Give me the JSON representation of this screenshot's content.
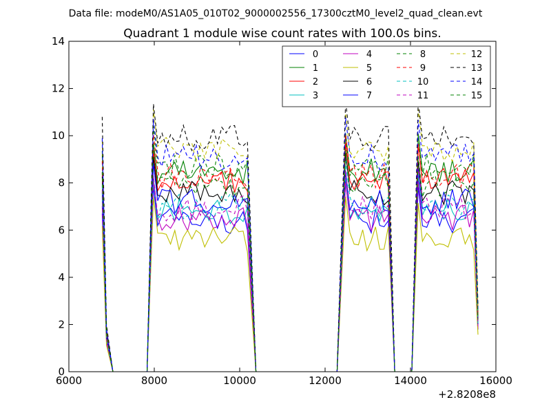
{
  "chart_data": {
    "type": "line",
    "suptitle": "Data file: modeM0/AS1A05_010T02_9000002556_17300cztM0_level2_quad_clean.evt",
    "title": "Quadrant 1 module wise count rates with 100.0s bins.",
    "xlabel": "",
    "ylabel": "",
    "x_offset_label": "+2.8208e8",
    "xlim": [
      6000,
      16000
    ],
    "ylim": [
      0,
      14
    ],
    "x_ticks": [
      "6000",
      "8000",
      "10000",
      "12000",
      "14000",
      "16000"
    ],
    "y_ticks": [
      "0",
      "2",
      "4",
      "6",
      "8",
      "10",
      "12",
      "14"
    ],
    "grid": false,
    "legend_position": "top-right",
    "legend_columns": 4,
    "series": [
      {
        "name": "0",
        "color": "#0000ff",
        "dash": "solid",
        "level": 6.4
      },
      {
        "name": "1",
        "color": "#008000",
        "dash": "solid",
        "level": 8.5
      },
      {
        "name": "2",
        "color": "#ff0000",
        "dash": "solid",
        "level": 8.1
      },
      {
        "name": "3",
        "color": "#00bfbf",
        "dash": "solid",
        "level": 6.8
      },
      {
        "name": "4",
        "color": "#bf00bf",
        "dash": "solid",
        "level": 6.5
      },
      {
        "name": "5",
        "color": "#bfbf00",
        "dash": "solid",
        "level": 5.6
      },
      {
        "name": "6",
        "color": "#000000",
        "dash": "solid",
        "level": 7.6
      },
      {
        "name": "7",
        "color": "#0000ff",
        "dash": "solid",
        "level": 7.2
      },
      {
        "name": "8",
        "color": "#008000",
        "dash": "dashed",
        "level": 8.7
      },
      {
        "name": "9",
        "color": "#ff0000",
        "dash": "dashed",
        "level": 8.3
      },
      {
        "name": "10",
        "color": "#00bfbf",
        "dash": "dashed",
        "level": 7.0
      },
      {
        "name": "11",
        "color": "#bf00bf",
        "dash": "dashed",
        "level": 6.9
      },
      {
        "name": "12",
        "color": "#bfbf00",
        "dash": "dashed",
        "level": 9.4
      },
      {
        "name": "13",
        "color": "#000000",
        "dash": "dashed",
        "level": 9.9
      },
      {
        "name": "14",
        "color": "#0000ff",
        "dash": "dashed",
        "level": 9.1
      },
      {
        "name": "15",
        "color": "#008000",
        "dash": "dashed",
        "level": 7.9
      }
    ],
    "time_segments": [
      {
        "start": 6780,
        "end": 6880,
        "kind": "lead"
      },
      {
        "start": 7030,
        "end": 7830,
        "kind": "gap"
      },
      {
        "start": 7980,
        "end": 10180,
        "kind": "on"
      },
      {
        "start": 10380,
        "end": 12280,
        "kind": "gap"
      },
      {
        "start": 12480,
        "end": 13480,
        "kind": "on"
      },
      {
        "start": 13630,
        "end": 14030,
        "kind": "gap"
      },
      {
        "start": 14180,
        "end": 15480,
        "kind": "on"
      }
    ],
    "last_point": {
      "x": 15580,
      "level_scale": 0.28
    }
  }
}
